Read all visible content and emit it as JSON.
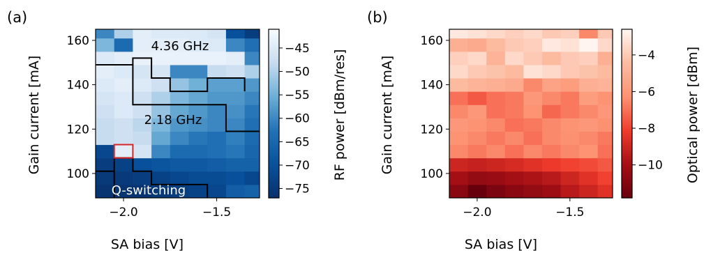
{
  "chart_data": [
    {
      "type": "heatmap",
      "panel_label": "(a)",
      "xlabel": "SA bias [V]",
      "ylabel": "Gain current [mA]",
      "colorbar_label": "RF power [dBm/res]",
      "colormap": "Blues",
      "xlim": [
        -2.15,
        -1.27
      ],
      "ylim": [
        89,
        165
      ],
      "clim": [
        -77,
        -41
      ],
      "xticks": [
        -2.0,
        -1.5
      ],
      "xtick_labels": [
        "−2.0",
        "−1.5"
      ],
      "yticks": [
        100,
        120,
        140,
        160
      ],
      "ytick_labels": [
        "100",
        "120",
        "140",
        "160"
      ],
      "cbar_ticks": [
        -45,
        -50,
        -55,
        -60,
        -65,
        -70,
        -75
      ],
      "cbar_tick_labels": [
        "−45",
        "−50",
        "−55",
        "−60",
        "−65",
        "−70",
        "−75"
      ],
      "x": [
        -2.1,
        -2.0,
        -1.9,
        -1.8,
        -1.7,
        -1.6,
        -1.5,
        -1.4,
        -1.3
      ],
      "y": [
        92,
        98,
        104,
        110,
        116,
        122,
        128,
        134,
        140,
        146,
        152,
        158,
        164
      ],
      "z": [
        [
          -76,
          -76,
          -76,
          -75,
          -74,
          -73,
          -72,
          -67,
          -66
        ],
        [
          -75,
          -75,
          -74,
          -73,
          -72,
          -71,
          -71,
          -70,
          -72
        ],
        [
          -74,
          -73,
          -70,
          -69,
          -68,
          -68,
          -67,
          -66,
          -66
        ],
        [
          -72,
          -44,
          -46,
          -60,
          -64,
          -64,
          -63,
          -62,
          -65
        ],
        [
          -48,
          -47,
          -48,
          -56,
          -60,
          -62,
          -63,
          -61,
          -64
        ],
        [
          -48,
          -47,
          -49,
          -54,
          -58,
          -59,
          -60,
          -60,
          -63
        ],
        [
          -47,
          -45,
          -47,
          -52,
          -56,
          -58,
          -60,
          -59,
          -62
        ],
        [
          -46,
          -45,
          -47,
          -50,
          -54,
          -56,
          -58,
          -58,
          -60
        ],
        [
          -45,
          -44,
          -45,
          -47,
          -52,
          -55,
          -57,
          -57,
          -58
        ],
        [
          -44,
          -45,
          -46,
          -46,
          -60,
          -60,
          -48,
          -47,
          -50
        ],
        [
          -45,
          -44,
          -43,
          -43,
          -43,
          -43,
          -43,
          -44,
          -60
        ],
        [
          -54,
          -64,
          -44,
          -44,
          -44,
          -45,
          -45,
          -60,
          -63
        ],
        [
          -60,
          -50,
          -44,
          -45,
          -45,
          -45,
          -46,
          -70,
          -74
        ]
      ],
      "annotations": [
        {
          "text": "4.36 GHz",
          "x": -1.7,
          "y": 158
        },
        {
          "text": "2.18 GHz",
          "x": -1.8,
          "y": 125
        },
        {
          "text": "Q-switching",
          "x": -1.9,
          "y": 92
        }
      ],
      "marker": {
        "shape": "square",
        "color": "#d62728",
        "x": -2.0,
        "y": 110
      }
    },
    {
      "type": "heatmap",
      "panel_label": "(b)",
      "xlabel": "SA bias [V]",
      "ylabel": "Gain current [mA]",
      "colorbar_label": "Optical power [dBm]",
      "colormap": "Reds_r",
      "xlim": [
        -2.15,
        -1.27
      ],
      "ylim": [
        89,
        165
      ],
      "clim": [
        -11.8,
        -2.6
      ],
      "xticks": [
        -2.0,
        -1.5
      ],
      "xtick_labels": [
        "−2.0",
        "−1.5"
      ],
      "yticks": [
        100,
        120,
        140,
        160
      ],
      "ytick_labels": [
        "100",
        "120",
        "140",
        "160"
      ],
      "cbar_ticks": [
        -4,
        -6,
        -8,
        -10
      ],
      "cbar_tick_labels": [
        "−4",
        "−6",
        "−8",
        "−10"
      ],
      "x": [
        -2.1,
        -2.0,
        -1.9,
        -1.8,
        -1.7,
        -1.6,
        -1.5,
        -1.4,
        -1.3
      ],
      "y": [
        92,
        98,
        104,
        110,
        116,
        122,
        128,
        134,
        140,
        146,
        152,
        158,
        164
      ],
      "z": [
        [
          -10.8,
          -11.8,
          -11.2,
          -10.8,
          -10.5,
          -10.2,
          -9.5,
          -9.0,
          -8.5
        ],
        [
          -10.0,
          -10.5,
          -10.3,
          -10.0,
          -9.8,
          -9.5,
          -9.0,
          -8.5,
          -8.0
        ],
        [
          -9.0,
          -9.2,
          -9.0,
          -8.8,
          -8.5,
          -8.2,
          -8.0,
          -7.8,
          -7.5
        ],
        [
          -6.5,
          -6.8,
          -6.5,
          -7.0,
          -6.5,
          -6.8,
          -6.5,
          -6.2,
          -7.0
        ],
        [
          -6.2,
          -6.5,
          -6.8,
          -6.5,
          -7.0,
          -6.5,
          -6.3,
          -6.5,
          -6.8
        ],
        [
          -6.0,
          -6.2,
          -6.5,
          -7.0,
          -6.8,
          -6.5,
          -6.2,
          -6.0,
          -6.3
        ],
        [
          -6.5,
          -6.0,
          -7.0,
          -6.8,
          -6.2,
          -7.2,
          -6.8,
          -6.5,
          -6.0
        ],
        [
          -7.0,
          -7.5,
          -7.0,
          -6.8,
          -6.0,
          -6.5,
          -6.8,
          -5.8,
          -6.2
        ],
        [
          -4.5,
          -4.8,
          -5.0,
          -5.2,
          -6.5,
          -5.5,
          -5.8,
          -5.0,
          -4.8
        ],
        [
          -3.5,
          -4.0,
          -4.2,
          -4.5,
          -3.2,
          -3.5,
          -4.0,
          -4.2,
          -4.5
        ],
        [
          -3.8,
          -3.5,
          -4.8,
          -3.5,
          -4.0,
          -4.5,
          -4.0,
          -3.8,
          -5.0
        ],
        [
          -5.0,
          -5.2,
          -4.5,
          -4.0,
          -3.8,
          -3.0,
          -3.2,
          -2.6,
          -3.5
        ],
        [
          -3.0,
          -3.2,
          -3.5,
          -3.8,
          -3.5,
          -4.0,
          -3.8,
          -6.5,
          -4.0
        ]
      ]
    }
  ]
}
